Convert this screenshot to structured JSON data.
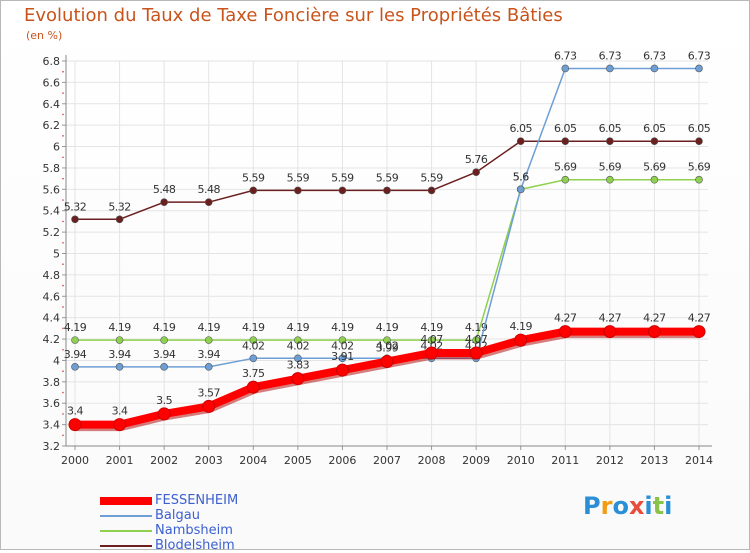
{
  "title": "Evolution du Taux de Taxe Foncière sur les Propriétés Bâties",
  "unit_label": "(en %)",
  "logo": {
    "letters": [
      "P",
      "r",
      "o",
      "x",
      "i",
      "t",
      "i"
    ],
    "colors": [
      "#2a8fd6",
      "#f39c12",
      "#2a8fd6",
      "#e74c3c",
      "#2a8fd6",
      "#8bc34a",
      "#2a8fd6"
    ]
  },
  "chart_data": {
    "type": "line",
    "title": "Evolution du Taux de Taxe Foncière sur les Propriétés Bâties",
    "ylabel": "(en %)",
    "xlabel": "",
    "x": [
      "2000",
      "2001",
      "2002",
      "2003",
      "2004",
      "2005",
      "2006",
      "2007",
      "2008",
      "2009",
      "2010",
      "2011",
      "2012",
      "2013",
      "2014"
    ],
    "ylim": [
      3.2,
      6.8
    ],
    "yticks": [
      "3.2",
      "3.4",
      "3.6",
      "3.8",
      "4",
      "4.2",
      "4.4",
      "4.6",
      "4.8",
      "5",
      "5.2",
      "5.4",
      "5.6",
      "5.8",
      "6",
      "6.2",
      "6.4",
      "6.6",
      "6.8"
    ],
    "grid": true,
    "legend_position": "bottom-left",
    "series": [
      {
        "name": "Blodelsheim",
        "color": "#6b1f1f",
        "values": [
          5.32,
          5.32,
          5.48,
          5.48,
          5.59,
          5.59,
          5.59,
          5.59,
          5.59,
          5.76,
          6.05,
          6.05,
          6.05,
          6.05,
          6.05
        ],
        "labels": [
          "5.32",
          "5.32",
          "5.48",
          "5.48",
          "5.59",
          "5.59",
          "5.59",
          "5.59",
          "5.59",
          "5.76",
          "6.05",
          "6.05",
          "6.05",
          "6.05",
          "6.05"
        ]
      },
      {
        "name": "Nambsheim",
        "color": "#8fd14f",
        "values": [
          4.19,
          4.19,
          4.19,
          4.19,
          4.19,
          4.19,
          4.19,
          4.19,
          4.19,
          4.19,
          5.6,
          5.69,
          5.69,
          5.69,
          5.69
        ],
        "labels": [
          "4.19",
          "4.19",
          "4.19",
          "4.19",
          "4.19",
          "4.19",
          "4.19",
          "4.19",
          "4.19",
          "4.19",
          "5.6",
          "5.69",
          "5.69",
          "5.69",
          "5.69"
        ]
      },
      {
        "name": "Balgau",
        "color": "#6d9fd6",
        "values": [
          3.94,
          3.94,
          3.94,
          3.94,
          4.02,
          4.02,
          4.02,
          4.02,
          4.02,
          4.02,
          5.6,
          6.73,
          6.73,
          6.73,
          6.73
        ],
        "labels": [
          "3.94",
          "3.94",
          "3.94",
          "3.94",
          "4.02",
          "4.02",
          "4.02",
          "4.02",
          "4.02",
          "4.02",
          "5.6",
          "6.73",
          "6.73",
          "6.73",
          "6.73"
        ]
      },
      {
        "name": "FESSENHEIM",
        "color": "#ff0000",
        "values": [
          3.4,
          3.4,
          3.5,
          3.57,
          3.75,
          3.83,
          3.91,
          3.99,
          4.07,
          4.07,
          4.19,
          4.27,
          4.27,
          4.27,
          4.27
        ],
        "labels": [
          "3.4",
          "3.4",
          "3.5",
          "3.57",
          "3.75",
          "3.83",
          "3.91",
          "3.99",
          "4.07",
          "4.07",
          "4.19",
          "4.27",
          "4.27",
          "4.27",
          "4.27"
        ]
      }
    ],
    "legend": [
      "FESSENHEIM",
      "Balgau",
      "Nambsheim",
      "Blodelsheim"
    ]
  }
}
